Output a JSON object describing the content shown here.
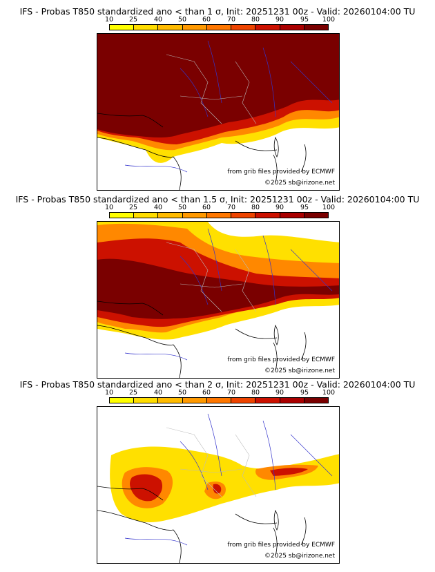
{
  "panels": [
    {
      "title": "IFS - Probas T850  standardized ano < than 1 σ, Init: 20251231 00z - Valid: 20260104:00 TU",
      "credit": "from grib files provided by ECMWF",
      "copyright": "©2025 sb@irizone.net"
    },
    {
      "title": "IFS - Probas T850  standardized ano < than 1.5 σ, Init: 20251231 00z - Valid: 20260104:00 TU",
      "credit": "from grib files provided by ECMWF",
      "copyright": "©2025 sb@irizone.net"
    },
    {
      "title": "IFS - Probas T850  standardized ano < than 2 σ, Init: 20251231 00z - Valid: 20260104:00 TU",
      "credit": "from grib files provided by ECMWF",
      "copyright": "©2025 sb@irizone.net"
    }
  ],
  "colorbar": {
    "labels": [
      "10",
      "25",
      "40",
      "50",
      "60",
      "70",
      "80",
      "90",
      "95",
      "100"
    ],
    "colors": [
      "#ffff00",
      "#ffdd00",
      "#ffbb00",
      "#ff9900",
      "#ff7700",
      "#ee4400",
      "#cc1100",
      "#aa0000",
      "#7a0000"
    ]
  },
  "map_colors": {
    "coast": "#000000",
    "rivers": "#3333cc",
    "borders": "#bbbbbb"
  }
}
